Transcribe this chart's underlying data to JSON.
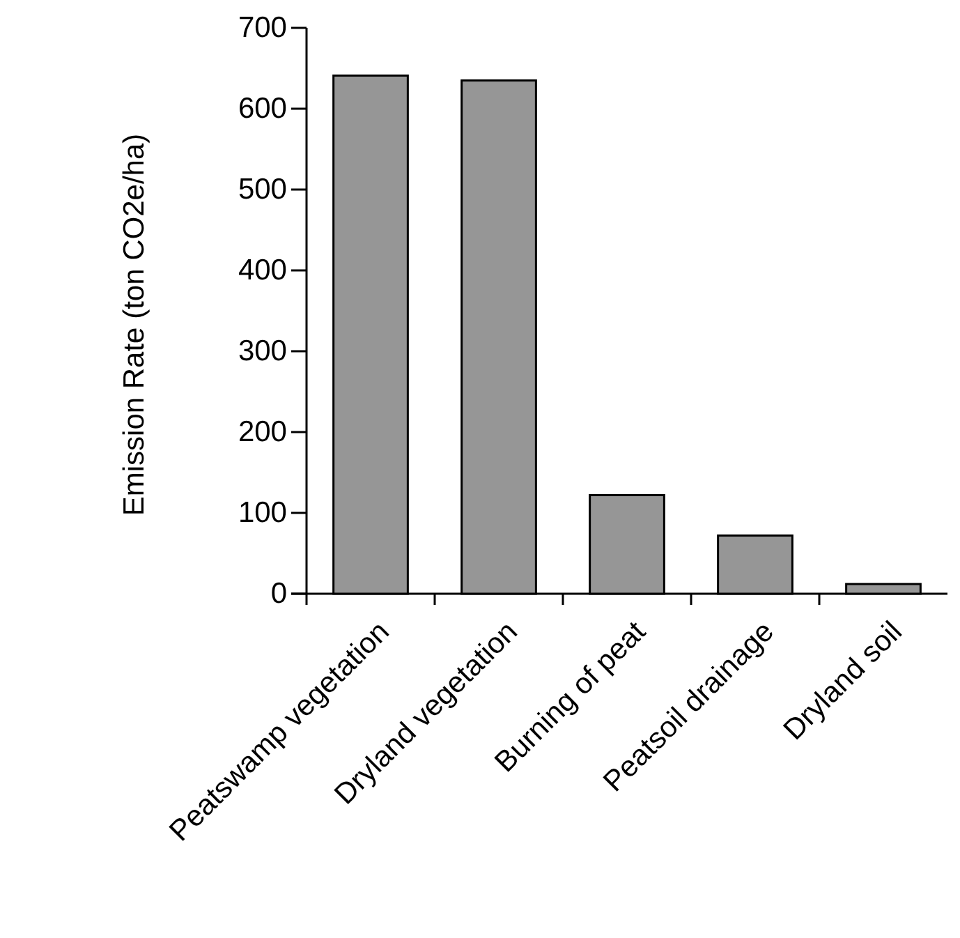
{
  "chart_data": {
    "type": "bar",
    "ylabel": "Emission Rate (ton CO2e/ha)",
    "categories": [
      "Peatswamp vegetation",
      "Dryland vegetation",
      "Burning of peat",
      "Peatsoil drainage",
      "Dryland soil"
    ],
    "values": [
      641,
      635,
      122,
      72,
      12
    ],
    "color": "#969696",
    "ylim": [
      0,
      700
    ],
    "yticks": [
      0,
      100,
      200,
      300,
      400,
      500,
      600,
      700
    ],
    "grid": false
  }
}
